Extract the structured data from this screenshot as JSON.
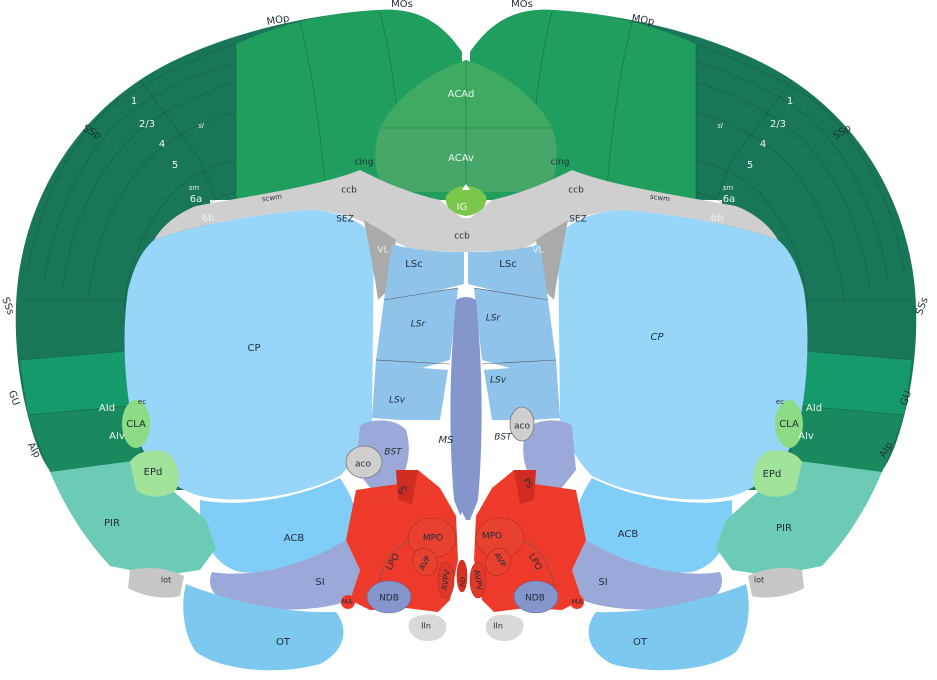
{
  "colors": {
    "isocortex_dark": "#17815a",
    "isocortex_mid": "#1f9e5e",
    "isocortex_somato": "#197658",
    "acad": "#3fab62",
    "acav": "#46a768",
    "ig": "#7ac74c",
    "fiber": "#cfcfcf",
    "fiber_dark": "#a6a6a6",
    "striatum_dorsal": "#98d6f9",
    "striatum_ventral": "#80cdf8",
    "lateral_septum": "#8fc3ea",
    "pallidum": "#9aa9d8",
    "ms": "#8596cd",
    "hypothalamus": "#ee3a2b",
    "hypothalamus_dark": "#d12c21",
    "olfactory": "#6ccbb5",
    "olfactory_light": "#8cd9c5",
    "cla": "#8ddb84",
    "epd": "#a1e39a",
    "ventricle": "#aaaaaa",
    "ot": "#7cc8ef",
    "iin": "#d9d9d9"
  },
  "labels": {
    "mop_l": "MOp",
    "mos_l": "MOs",
    "mos_r": "MOs",
    "mop_r": "MOp",
    "acad": "ACAd",
    "acav": "ACAv",
    "ig": "IG",
    "ssp_l": "SSp",
    "ssp_r": "SSp",
    "l1_l": "1",
    "l23_l": "2/3",
    "l4_l": "4",
    "l5_l": "5",
    "l6a_l": "6a",
    "l6b_l": "6b",
    "l1_r": "1",
    "l23_r": "2/3",
    "l4_r": "4",
    "l5_r": "5",
    "l6a_r": "6a",
    "l6b_r": "6b",
    "ss_l": "SSs",
    "ss_r": "SSs",
    "gu_l": "GU",
    "gu_r": "GU",
    "aip_l": "AIp",
    "aip_r": "AIp",
    "aid_l": "AId",
    "aid_r": "AId",
    "aiv_l": "AIv",
    "aiv_r": "AIv",
    "cla_l": "CLA",
    "cla_r": "CLA",
    "ec_l": "ec",
    "ec_r": "ec",
    "epd_l": "EPd",
    "epd_r": "EPd",
    "pir_l": "PIR",
    "pir_r": "PIR",
    "lot_l": "lot",
    "lot_r": "lot",
    "cing_l": "cing",
    "cing_r": "cing",
    "ccb_l": "ccb",
    "ccb_r": "ccb",
    "ccb_c": "ccb",
    "scwm_l": "scwm",
    "scwm_r": "scwm",
    "sez_l": "SEZ",
    "sez_r": "SEZ",
    "vl_l": "VL",
    "vl_r": "VL",
    "lsc_l": "LSc",
    "lsc_r": "LSc",
    "lsr_l": "LSr",
    "lsr_r": "LSr",
    "lsv_l": "LSv",
    "lsv_r": "LSv",
    "ms": "MS",
    "cp_l": "CP",
    "cp_r": "CP",
    "acb_l": "ACB",
    "acb_r": "ACB",
    "aco_l": "aco",
    "aco_r": "aco",
    "bst_l": "BST",
    "bst_r": "BST",
    "ps_l": "PS",
    "ps_r": "PS",
    "mpo_l": "MPO",
    "mpo_r": "MPO",
    "lpo_l": "LPO",
    "lpo_r": "LPO",
    "avp_l": "AVP",
    "avp_r": "AVP",
    "avpv_l": "AVPV",
    "avpv_r": "AVPV",
    "ov": "OV",
    "si_l": "SI",
    "si_r": "SI",
    "ma_l": "MA",
    "ma_r": "MA",
    "ndb_l": "NDB",
    "ndb_r": "NDB",
    "iin_l": "IIn",
    "iin_r": "IIn",
    "ot_l": "OT",
    "ot_r": "OT",
    "sl_l": "sl",
    "sl_r": "sl",
    "sm_l": "sm",
    "sm_r": "sm"
  }
}
